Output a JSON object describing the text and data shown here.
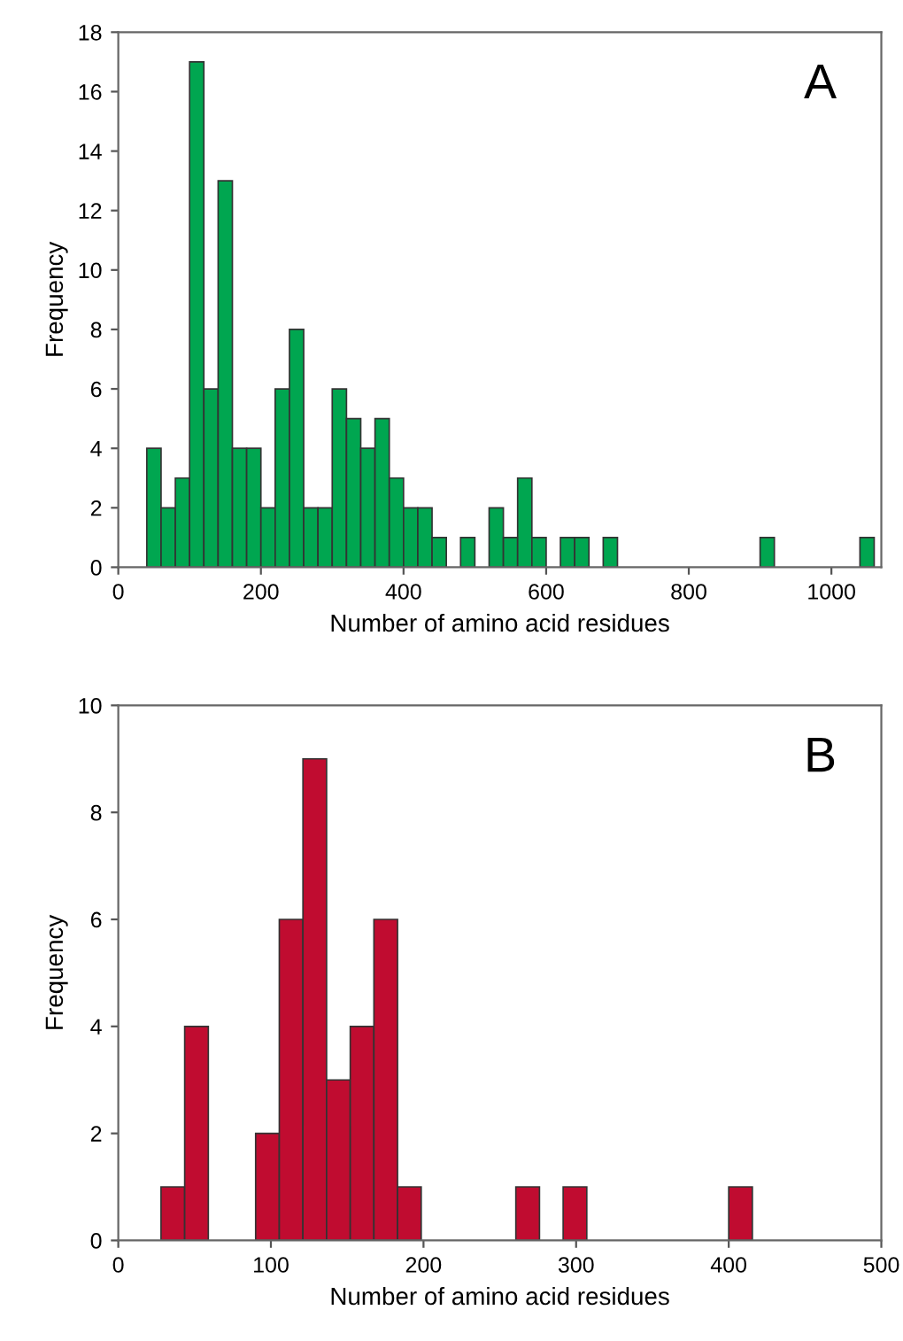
{
  "chart_data": [
    {
      "type": "histogram",
      "xlabel": "Number of amino acid residues",
      "ylabel": "Frequency",
      "annotations": [
        "A"
      ],
      "color": "#00a650",
      "bins": [
        40,
        60,
        80,
        100,
        120,
        140,
        160,
        180,
        200,
        220,
        240,
        260,
        280,
        300,
        320,
        340,
        360,
        380,
        400,
        420,
        440,
        460,
        480,
        500,
        520,
        540,
        560,
        580,
        600,
        620,
        640,
        660,
        680,
        700,
        720,
        740,
        760,
        780,
        800,
        820,
        840,
        860,
        880,
        900,
        920,
        940,
        960,
        980,
        1000,
        1020,
        1040,
        1060
      ],
      "values": [
        4,
        2,
        3,
        17,
        6,
        13,
        4,
        4,
        2,
        6,
        8,
        2,
        2,
        6,
        5,
        4,
        5,
        3,
        2,
        2,
        1,
        0,
        1,
        0,
        2,
        1,
        3,
        1,
        0,
        1,
        1,
        0,
        1,
        0,
        0,
        0,
        0,
        0,
        0,
        0,
        0,
        0,
        0,
        1,
        0,
        0,
        0,
        0,
        0,
        0,
        1
      ],
      "xlim": [
        0,
        1070
      ],
      "ylim": [
        0,
        18
      ],
      "xticks": [
        0,
        200,
        400,
        600,
        800,
        1000
      ],
      "yticks": [
        0,
        2,
        4,
        6,
        8,
        10,
        12,
        14,
        16,
        18
      ],
      "grid": false
    },
    {
      "type": "histogram",
      "xlabel": "Number of amino acid residues",
      "ylabel": "Frequency",
      "annotations": [
        "B"
      ],
      "color": "#c00c30",
      "bins": [
        28,
        43.5,
        59,
        74.5,
        90,
        105.5,
        121,
        136.5,
        152,
        167.5,
        183,
        198.5,
        214,
        229.5,
        245,
        260.5,
        276,
        291.5,
        307,
        322.5,
        338,
        353.5,
        369,
        384.5,
        400,
        415.5
      ],
      "values": [
        1,
        4,
        0,
        0,
        2,
        6,
        9,
        3,
        4,
        6,
        1,
        0,
        0,
        0,
        0,
        1,
        0,
        1,
        0,
        0,
        0,
        0,
        0,
        0,
        1
      ],
      "xlim": [
        0,
        500
      ],
      "ylim": [
        0,
        10
      ],
      "xticks": [
        0,
        100,
        200,
        300,
        400,
        500
      ],
      "yticks": [
        0,
        2,
        4,
        6,
        8,
        10
      ],
      "grid": false
    }
  ]
}
